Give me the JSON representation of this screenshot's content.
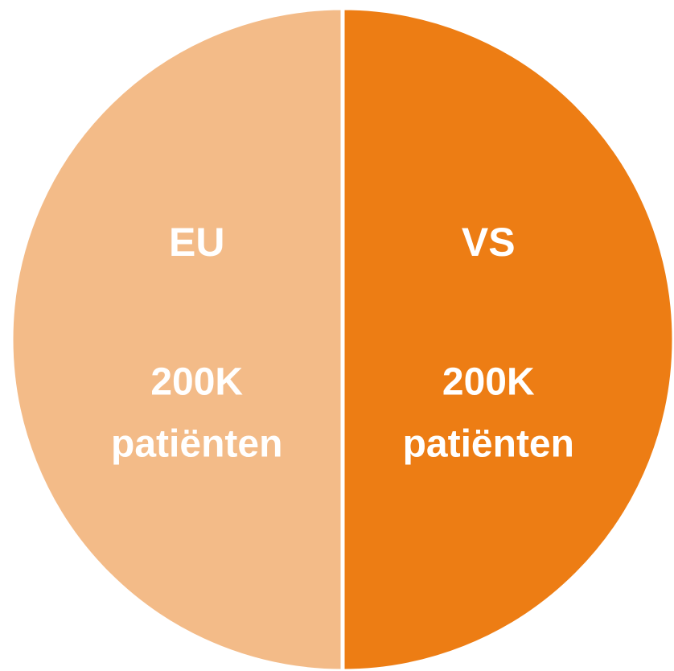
{
  "chart_data": {
    "type": "pie",
    "categories": [
      "EU",
      "VS"
    ],
    "values": [
      200000,
      200000
    ],
    "value_labels": [
      "200K",
      "200K"
    ],
    "unit_label": "patiënten",
    "colors": [
      "#f3bb88",
      "#ed7d14"
    ]
  }
}
